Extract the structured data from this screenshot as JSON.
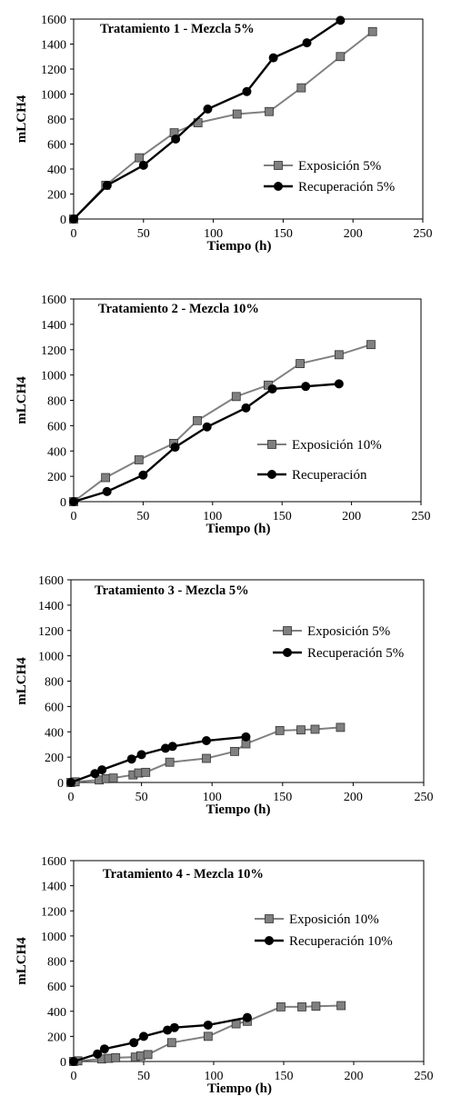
{
  "chart_data": [
    {
      "type": "line",
      "title": "Tratamiento 1 -  Mezcla 5%",
      "xlabel": "Tiempo (h)",
      "ylabel": "mLCH4",
      "xlim": [
        0,
        250
      ],
      "ylim": [
        0,
        1600
      ],
      "xticks": [
        0,
        50,
        100,
        150,
        200,
        250
      ],
      "yticks": [
        0,
        200,
        400,
        600,
        800,
        1000,
        1200,
        1400,
        1600
      ],
      "grid": false,
      "legend_position": "right",
      "series": [
        {
          "name": "Exposición 5%",
          "marker": "square",
          "color": "#808080",
          "x": [
            0,
            23,
            47,
            72,
            89,
            117,
            140,
            163,
            191,
            214
          ],
          "y": [
            0,
            270,
            490,
            690,
            770,
            840,
            860,
            1050,
            1300,
            1500
          ]
        },
        {
          "name": "Recuperación 5%",
          "marker": "circle",
          "color": "#000000",
          "x": [
            0,
            24,
            50,
            73,
            96,
            124,
            143,
            167,
            191
          ],
          "y": [
            0,
            270,
            430,
            640,
            880,
            1020,
            1290,
            1410,
            1590
          ]
        }
      ]
    },
    {
      "type": "line",
      "title": "Tratamiento 2 - Mezcla 10%",
      "xlabel": "Tiempo (h)",
      "ylabel": "mLCH4",
      "xlim": [
        0,
        250
      ],
      "ylim": [
        0,
        1600
      ],
      "xticks": [
        0,
        50,
        100,
        150,
        200,
        250
      ],
      "yticks": [
        0,
        200,
        400,
        600,
        800,
        1000,
        1200,
        1400,
        1600
      ],
      "grid": false,
      "legend_position": "right",
      "series": [
        {
          "name": "Exposición 10%",
          "marker": "square",
          "color": "#808080",
          "x": [
            0,
            23,
            47,
            72,
            89,
            117,
            140,
            163,
            191,
            214
          ],
          "y": [
            0,
            190,
            330,
            460,
            640,
            830,
            920,
            1090,
            1160,
            1240
          ]
        },
        {
          "name": "Recuperación",
          "marker": "circle",
          "color": "#000000",
          "x": [
            0,
            24,
            50,
            73,
            96,
            124,
            143,
            167,
            191
          ],
          "y": [
            0,
            80,
            210,
            430,
            590,
            740,
            890,
            910,
            930
          ]
        }
      ]
    },
    {
      "type": "line",
      "title": "Tratamiento 3 - Mezcla 5%",
      "xlabel": "Tiempo (h)",
      "ylabel": "mLCH4",
      "xlim": [
        0,
        250
      ],
      "ylim": [
        0,
        1600
      ],
      "xticks": [
        0,
        50,
        100,
        150,
        200,
        250
      ],
      "yticks": [
        0,
        200,
        400,
        600,
        800,
        1000,
        1200,
        1400,
        1600
      ],
      "grid": false,
      "legend_position": "top-right",
      "series": [
        {
          "name": "Exposición 5%",
          "marker": "square",
          "color": "#808080",
          "x": [
            0,
            3,
            20,
            25,
            30,
            44,
            48,
            53,
            70,
            96,
            116,
            124,
            148,
            163,
            173,
            191
          ],
          "y": [
            0,
            5,
            20,
            30,
            35,
            60,
            75,
            80,
            160,
            190,
            245,
            305,
            410,
            415,
            420,
            435
          ]
        },
        {
          "name": "Recuperación 5%",
          "marker": "circle",
          "color": "#000000",
          "x": [
            0,
            17,
            22,
            43,
            50,
            67,
            72,
            96,
            124
          ],
          "y": [
            0,
            70,
            100,
            185,
            220,
            270,
            285,
            330,
            360
          ]
        }
      ]
    },
    {
      "type": "line",
      "title": "Tratamiento 4 - Mezcla 10%",
      "xlabel": "Tiempo (h)",
      "ylabel": "mLCH4",
      "xlim": [
        0,
        250
      ],
      "ylim": [
        0,
        1600
      ],
      "xticks": [
        0,
        50,
        100,
        150,
        200,
        250
      ],
      "yticks": [
        0,
        200,
        400,
        600,
        800,
        1000,
        1200,
        1400,
        1600
      ],
      "grid": false,
      "legend_position": "top-right",
      "series": [
        {
          "name": "Exposición 10%",
          "marker": "square",
          "color": "#808080",
          "x": [
            0,
            3,
            20,
            25,
            30,
            44,
            48,
            53,
            70,
            96,
            116,
            124,
            148,
            163,
            173,
            191
          ],
          "y": [
            0,
            5,
            20,
            25,
            30,
            35,
            45,
            55,
            150,
            200,
            300,
            320,
            435,
            435,
            440,
            445
          ]
        },
        {
          "name": "Recuperación 10%",
          "marker": "circle",
          "color": "#000000",
          "x": [
            0,
            17,
            22,
            43,
            50,
            67,
            72,
            96,
            124
          ],
          "y": [
            0,
            60,
            100,
            150,
            200,
            250,
            270,
            290,
            350
          ]
        }
      ]
    }
  ]
}
